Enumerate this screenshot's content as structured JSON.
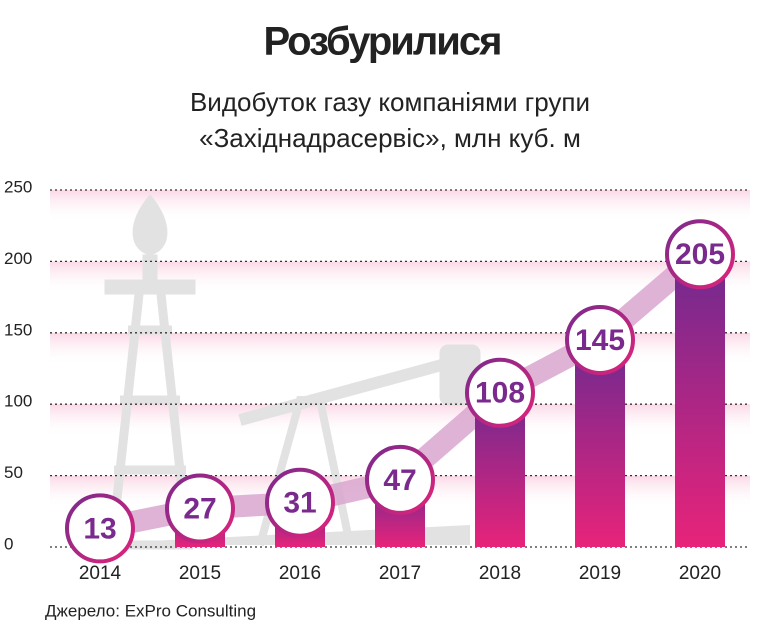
{
  "chart_data": {
    "type": "bar",
    "title": "Розбурилися",
    "subtitle": [
      "Видобуток газу компаніями групи",
      "«Західнадрасервіс», млн куб. м"
    ],
    "source": "Джерело: ExPro Consulting",
    "categories": [
      "2014",
      "2015",
      "2016",
      "2017",
      "2018",
      "2019",
      "2020"
    ],
    "values": [
      13,
      27,
      31,
      47,
      108,
      145,
      205
    ],
    "color": "#e0237a",
    "ylim": [
      0,
      250
    ],
    "yticks": [
      0,
      50,
      100,
      150,
      200,
      250
    ],
    "grid": true
  }
}
